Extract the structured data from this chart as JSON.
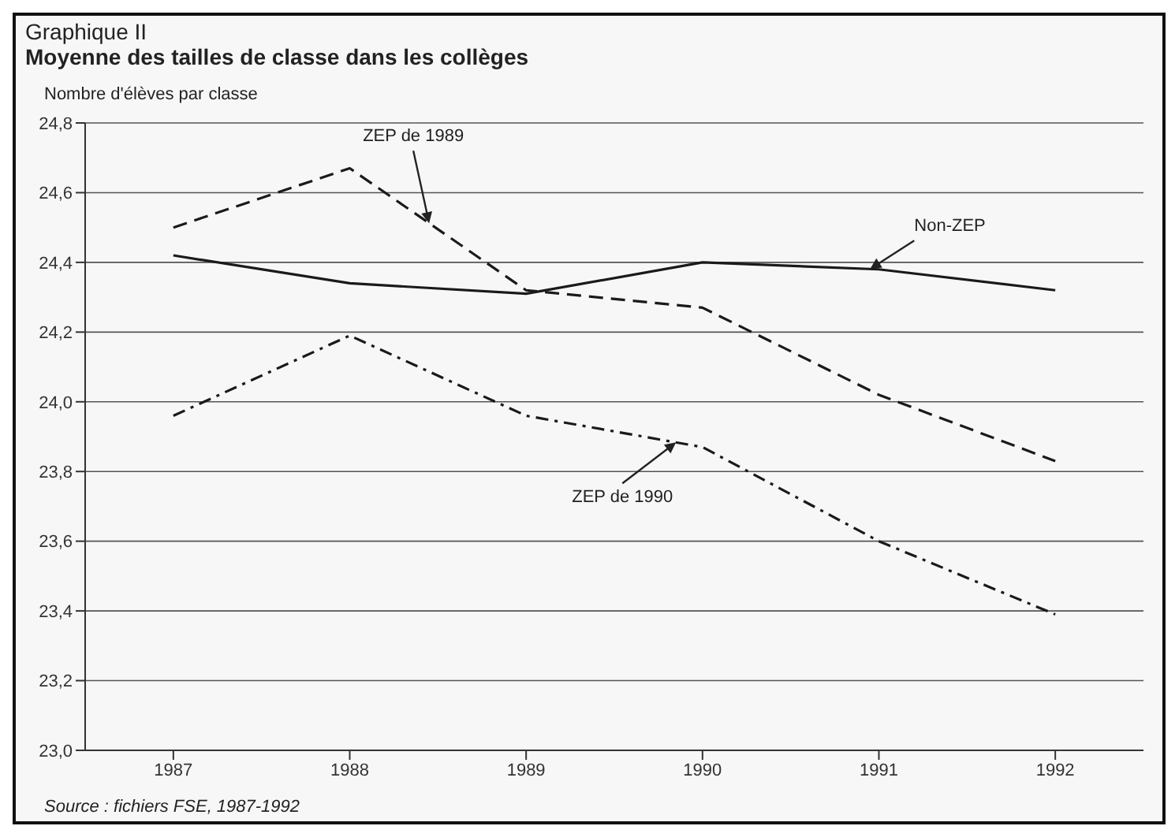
{
  "chart_data": {
    "type": "line",
    "title": "Graphique II",
    "subtitle": "Moyenne des tailles de classe dans les collèges",
    "ylabel": "Nombre d'élèves par classe",
    "categories": [
      "1987",
      "1988",
      "1989",
      "1990",
      "1991",
      "1992"
    ],
    "series": [
      {
        "name": "Non-ZEP",
        "color": "#1a1a1a",
        "line_style": "solid",
        "values": [
          24.42,
          24.34,
          24.31,
          24.4,
          24.38,
          24.32
        ]
      },
      {
        "name": "ZEP de 1989",
        "color": "#1a1a1a",
        "line_style": "dashed",
        "values": [
          24.5,
          24.67,
          24.32,
          24.27,
          24.02,
          23.83
        ]
      },
      {
        "name": "ZEP de 1990",
        "color": "#1a1a1a",
        "line_style": "dashdot",
        "values": [
          23.96,
          24.19,
          23.96,
          23.87,
          23.6,
          23.39
        ]
      }
    ],
    "ylim": [
      23.0,
      24.8
    ],
    "yticks": [
      {
        "value": 23.0,
        "label": "23,0"
      },
      {
        "value": 23.2,
        "label": "23,2"
      },
      {
        "value": 23.4,
        "label": "23,4"
      },
      {
        "value": 23.6,
        "label": "23,6"
      },
      {
        "value": 23.8,
        "label": "23,8"
      },
      {
        "value": 24.0,
        "label": "24,0"
      },
      {
        "value": 24.2,
        "label": "24,2"
      },
      {
        "value": 24.4,
        "label": "24,4"
      },
      {
        "value": 24.6,
        "label": "24,6"
      },
      {
        "value": 24.8,
        "label": "24,8"
      }
    ],
    "grid": "y",
    "legend": false,
    "marker": "none",
    "annotations": [
      "Source : fichiers FSE, 1987-1992"
    ]
  }
}
